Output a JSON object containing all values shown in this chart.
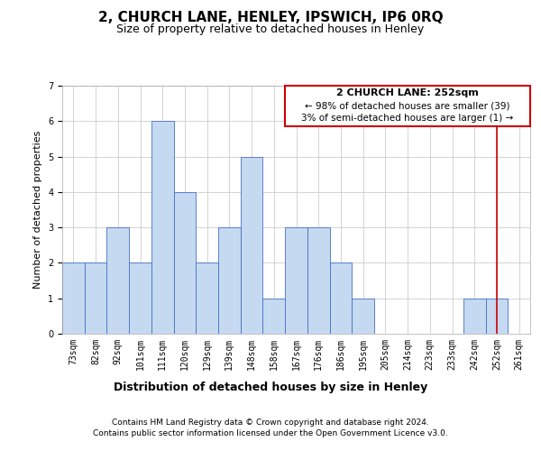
{
  "title": "2, CHURCH LANE, HENLEY, IPSWICH, IP6 0RQ",
  "subtitle": "Size of property relative to detached houses in Henley",
  "xlabel": "Distribution of detached houses by size in Henley",
  "ylabel": "Number of detached properties",
  "categories": [
    "73sqm",
    "82sqm",
    "92sqm",
    "101sqm",
    "111sqm",
    "120sqm",
    "129sqm",
    "139sqm",
    "148sqm",
    "158sqm",
    "167sqm",
    "176sqm",
    "186sqm",
    "195sqm",
    "205sqm",
    "214sqm",
    "223sqm",
    "233sqm",
    "242sqm",
    "252sqm",
    "261sqm"
  ],
  "values": [
    2,
    2,
    3,
    2,
    6,
    4,
    2,
    3,
    5,
    1,
    3,
    3,
    2,
    1,
    0,
    0,
    0,
    0,
    1,
    1,
    0
  ],
  "bar_color": "#c5d9f1",
  "bar_edge_color": "#4472c4",
  "vline_index": 19,
  "vline_color": "#cc0000",
  "annotation_title": "2 CHURCH LANE: 252sqm",
  "annotation_line1": "← 98% of detached houses are smaller (39)",
  "annotation_line2": "3% of semi-detached houses are larger (1) →",
  "annotation_box_color": "#ffffff",
  "annotation_box_edge_color": "#cc0000",
  "ylim": [
    0,
    7
  ],
  "yticks": [
    0,
    1,
    2,
    3,
    4,
    5,
    6,
    7
  ],
  "footer_line1": "Contains HM Land Registry data © Crown copyright and database right 2024.",
  "footer_line2": "Contains public sector information licensed under the Open Government Licence v3.0.",
  "title_fontsize": 11,
  "subtitle_fontsize": 9,
  "ylabel_fontsize": 8,
  "xlabel_fontsize": 9,
  "tick_fontsize": 7,
  "annotation_title_fontsize": 8,
  "annotation_text_fontsize": 7.5,
  "footer_fontsize": 6.5,
  "background_color": "#ffffff",
  "grid_color": "#cccccc"
}
